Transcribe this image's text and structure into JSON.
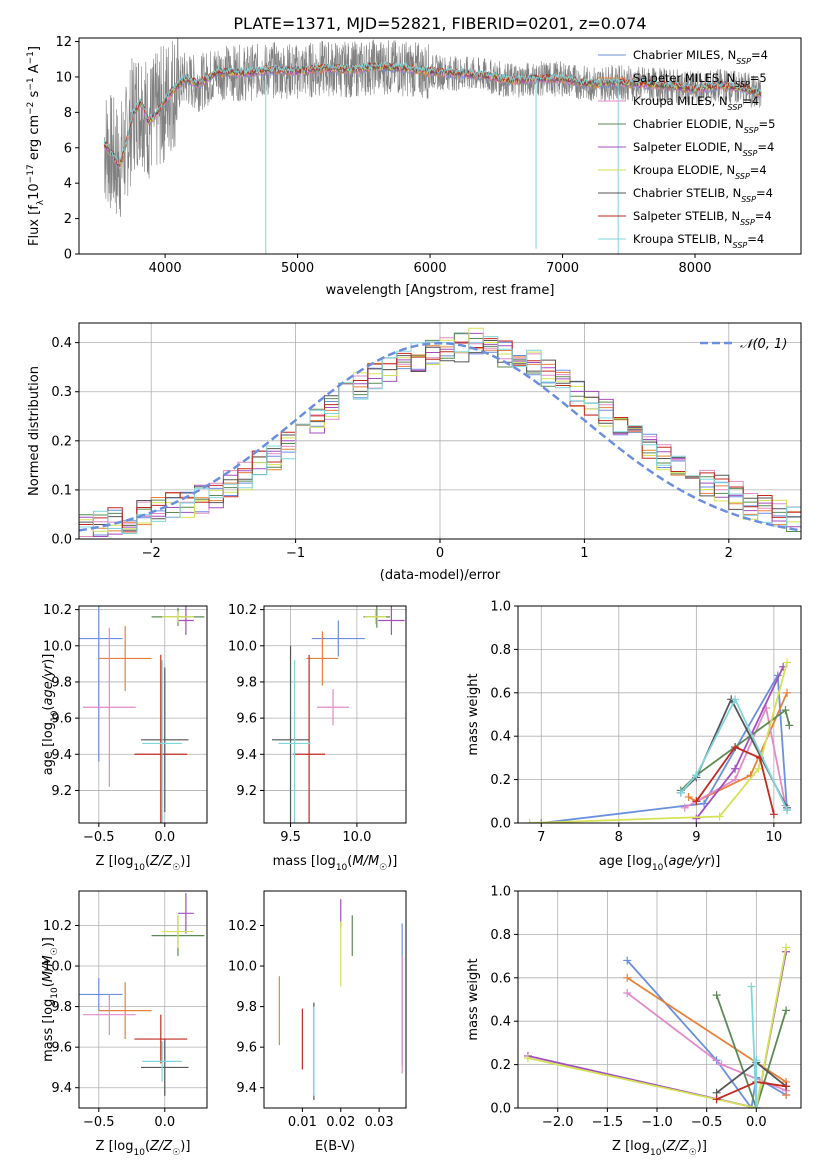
{
  "title": "PLATE=1371, MJD=52821, FIBERID=0201, z=0.074",
  "colors": {
    "Chabrier MILES": "#6b8fdf",
    "Salpeter MILES": "#e8813a",
    "Kroupa MILES": "#e38ac8",
    "Chabrier ELODIE": "#5c8a55",
    "Salpeter ELODIE": "#a34fc0",
    "Kroupa ELODIE": "#d4e256",
    "Chabrier STELIB": "#555555",
    "Salpeter STELIB": "#c22a20",
    "Kroupa STELIB": "#7fd6dc",
    "data": "#808080",
    "normal": "#6b8fdf"
  },
  "chart_data": [
    {
      "type": "line",
      "xlabel": "wavelength [Angstrom, rest frame]",
      "ylabel": "Flux [fλ10⁻¹⁷ erg cm⁻² s⁻¹ A⁻¹]",
      "xlim": [
        3350,
        8800
      ],
      "ylim": [
        0,
        12.2
      ],
      "xticks": [
        4000,
        5000,
        6000,
        7000,
        8000
      ],
      "yticks": [
        0,
        2,
        4,
        6,
        8,
        10,
        12
      ],
      "legend": "upper right",
      "legend_entries": [
        {
          "name": "Chabrier MILES",
          "label": "Chabrier MILES, N",
          "nssp": "4"
        },
        {
          "name": "Salpeter MILES",
          "label": "Salpeter MILES, N",
          "nssp": "5"
        },
        {
          "name": "Kroupa MILES",
          "label": "Kroupa MILES, N",
          "nssp": "4"
        },
        {
          "name": "Chabrier ELODIE",
          "label": "Chabrier ELODIE, N",
          "nssp": "5"
        },
        {
          "name": "Salpeter ELODIE",
          "label": "Salpeter ELODIE, N",
          "nssp": "4"
        },
        {
          "name": "Kroupa ELODIE",
          "label": "Kroupa ELODIE, N",
          "nssp": "4"
        },
        {
          "name": "Chabrier STELIB",
          "label": "Chabrier STELIB, N",
          "nssp": "4"
        },
        {
          "name": "Salpeter STELIB",
          "label": "Salpeter STELIB, N",
          "nssp": "4"
        },
        {
          "name": "Kroupa STELIB",
          "label": "Kroupa STELIB, N",
          "nssp": "4"
        }
      ],
      "nssp_subscript": "SSP",
      "model_curve": {
        "x": [
          3540,
          3600,
          3650,
          3700,
          3760,
          3820,
          3870,
          3920,
          3970,
          4050,
          4150,
          4250,
          4400,
          4600,
          4800,
          5000,
          5200,
          5400,
          5600,
          5800,
          6000,
          6200,
          6400,
          6600,
          6800,
          7000,
          7200,
          7400,
          7600,
          7800,
          8000,
          8200,
          8400,
          8500
        ],
        "y": [
          6.2,
          5.6,
          5.0,
          6.0,
          8.0,
          8.6,
          7.5,
          7.8,
          8.3,
          9.2,
          9.9,
          9.6,
          10.3,
          10.2,
          10.4,
          10.3,
          10.5,
          10.4,
          10.6,
          10.5,
          10.3,
          10.2,
          10.1,
          9.8,
          9.9,
          9.9,
          9.6,
          9.7,
          9.6,
          9.5,
          9.3,
          9.5,
          9.3,
          9.0
        ]
      },
      "data_wavelength_range": [
        3540,
        8500
      ]
    },
    {
      "type": "bar",
      "xlabel": "(data-model)/error",
      "ylabel": "Normed distribution",
      "xlim": [
        -2.5,
        2.5
      ],
      "ylim": [
        0,
        0.44
      ],
      "xticks": [
        -2,
        -1,
        0,
        1,
        2
      ],
      "yticks": [
        0.0,
        0.1,
        0.2,
        0.3,
        0.4
      ],
      "grid": true,
      "legend": "upper right",
      "legend_entries": [
        "𝒩(0, 1)"
      ],
      "bin_edges_start": -2.5,
      "bin_width": 0.1,
      "histogram_envelope": [
        0.02,
        0.03,
        0.035,
        0.04,
        0.05,
        0.06,
        0.065,
        0.07,
        0.08,
        0.09,
        0.11,
        0.13,
        0.15,
        0.17,
        0.19,
        0.21,
        0.24,
        0.27,
        0.29,
        0.31,
        0.33,
        0.35,
        0.36,
        0.37,
        0.38,
        0.39,
        0.39,
        0.4,
        0.39,
        0.38,
        0.37,
        0.36,
        0.34,
        0.32,
        0.3,
        0.28,
        0.26,
        0.24,
        0.21,
        0.19,
        0.17,
        0.15,
        0.13,
        0.11,
        0.1,
        0.09,
        0.07,
        0.06,
        0.05,
        0.04
      ]
    },
    {
      "type": "scatter",
      "xlabel": "Z [log10(Z/Z☉)]",
      "ylabel": "age  [log10(age/yr)]",
      "xlim": [
        -0.65,
        0.32
      ],
      "ylim": [
        9.02,
        10.22
      ],
      "xticks": [
        -0.5,
        0.0
      ],
      "yticks": [
        9.2,
        9.4,
        9.6,
        9.8,
        10.0,
        10.2
      ],
      "grid": true,
      "points": [
        {
          "name": "Chabrier MILES",
          "x": -0.5,
          "y": 10.04,
          "xe": 0.18,
          "ye": 0.68
        },
        {
          "name": "Salpeter MILES",
          "x": -0.3,
          "y": 9.93,
          "xe": 0.2,
          "ye": 0.18
        },
        {
          "name": "Kroupa MILES",
          "x": -0.42,
          "y": 9.66,
          "xe": 0.2,
          "ye": 0.44
        },
        {
          "name": "Chabrier ELODIE",
          "x": 0.1,
          "y": 10.16,
          "xe": 0.2,
          "ye": 0.05
        },
        {
          "name": "Salpeter ELODIE",
          "x": 0.16,
          "y": 10.14,
          "xe": 0.06,
          "ye": 0.08
        },
        {
          "name": "Kroupa ELODIE",
          "x": 0.1,
          "y": 10.16,
          "xe": 0.12,
          "ye": 0.03
        },
        {
          "name": "Chabrier STELIB",
          "x": 0.0,
          "y": 9.48,
          "xe": 0.18,
          "ye": 0.4
        },
        {
          "name": "Salpeter STELIB",
          "x": -0.03,
          "y": 9.4,
          "xe": 0.2,
          "ye": 0.55
        },
        {
          "name": "Kroupa STELIB",
          "x": -0.02,
          "y": 9.46,
          "xe": 0.15,
          "ye": 0.46
        }
      ]
    },
    {
      "type": "scatter",
      "xlabel": "mass [log10(M/M☉)]",
      "ylabel": "",
      "xlim": [
        9.3,
        10.37
      ],
      "ylim": [
        9.02,
        10.22
      ],
      "xticks": [
        9.5,
        10.0
      ],
      "yticks": [
        9.2,
        9.4,
        9.6,
        9.8,
        10.0,
        10.2
      ],
      "grid": true,
      "points": [
        {
          "name": "Chabrier MILES",
          "x": 9.86,
          "y": 10.04,
          "xe": 0.2,
          "ye": 0.1
        },
        {
          "name": "Salpeter MILES",
          "x": 9.74,
          "y": 9.93,
          "xe": 0.12,
          "ye": 0.15
        },
        {
          "name": "Kroupa MILES",
          "x": 9.82,
          "y": 9.66,
          "xe": 0.12,
          "ye": 0.1
        },
        {
          "name": "Chabrier ELODIE",
          "x": 10.15,
          "y": 10.16,
          "xe": 0.1,
          "ye": 0.06
        },
        {
          "name": "Salpeter ELODIE",
          "x": 10.26,
          "y": 10.14,
          "xe": 0.1,
          "ye": 0.08
        },
        {
          "name": "Kroupa ELODIE",
          "x": 10.14,
          "y": 10.16,
          "xe": 0.08,
          "ye": 0.04
        },
        {
          "name": "Chabrier STELIB",
          "x": 9.5,
          "y": 9.48,
          "xe": 0.14,
          "ye": 0.52
        },
        {
          "name": "Salpeter STELIB",
          "x": 9.64,
          "y": 9.4,
          "xe": 0.12,
          "ye": 0.55
        },
        {
          "name": "Kroupa STELIB",
          "x": 9.53,
          "y": 9.46,
          "xe": 0.12,
          "ye": 0.46
        }
      ]
    },
    {
      "type": "line",
      "xlabel": "age  [log10(age/yr)]",
      "ylabel": "mass weight",
      "xlim": [
        6.7,
        10.35
      ],
      "ylim": [
        0,
        1.0
      ],
      "xticks": [
        7,
        8,
        9,
        10
      ],
      "yticks": [
        0.0,
        0.2,
        0.4,
        0.6,
        0.8,
        1.0
      ],
      "grid": true,
      "series": [
        {
          "name": "Chabrier MILES",
          "x": [
            7.0,
            9.1,
            10.05,
            10.17
          ],
          "y": [
            0.0,
            0.09,
            0.68,
            0.06
          ]
        },
        {
          "name": "Salpeter MILES",
          "x": [
            8.9,
            9.0,
            9.7,
            10.17
          ],
          "y": [
            0.12,
            0.1,
            0.22,
            0.6
          ]
        },
        {
          "name": "Kroupa MILES",
          "x": [
            8.85,
            9.5,
            9.9,
            10.15
          ],
          "y": [
            0.07,
            0.2,
            0.53,
            0.08
          ]
        },
        {
          "name": "Chabrier ELODIE",
          "x": [
            8.8,
            9.0,
            10.15,
            10.2
          ],
          "y": [
            0.15,
            0.22,
            0.52,
            0.45
          ]
        },
        {
          "name": "Salpeter ELODIE",
          "x": [
            9.0,
            9.5,
            10.12
          ],
          "y": [
            0.02,
            0.25,
            0.72
          ]
        },
        {
          "name": "Kroupa ELODIE",
          "x": [
            6.85,
            9.3,
            9.8,
            10.17
          ],
          "y": [
            0.0,
            0.03,
            0.25,
            0.74
          ]
        },
        {
          "name": "Chabrier STELIB",
          "x": [
            8.8,
            9.0,
            9.45,
            10.17
          ],
          "y": [
            0.14,
            0.21,
            0.57,
            0.07
          ]
        },
        {
          "name": "Salpeter STELIB",
          "x": [
            9.0,
            9.5,
            9.82,
            10.0
          ],
          "y": [
            0.1,
            0.35,
            0.3,
            0.04
          ]
        },
        {
          "name": "Kroupa STELIB",
          "x": [
            8.8,
            9.0,
            9.5,
            10.17
          ],
          "y": [
            0.14,
            0.22,
            0.57,
            0.06
          ]
        }
      ]
    },
    {
      "type": "scatter",
      "xlabel": "Z [log10(Z/Z☉)]",
      "ylabel": "mass [log10(M/M☉)]",
      "xlim": [
        -0.65,
        0.32
      ],
      "ylim": [
        9.3,
        10.37
      ],
      "xticks": [
        -0.5,
        0.0
      ],
      "yticks": [
        9.4,
        9.6,
        9.8,
        10.0,
        10.2
      ],
      "grid": true,
      "points": [
        {
          "name": "Chabrier MILES",
          "x": -0.5,
          "y": 9.86,
          "xe": 0.18,
          "ye": 0.08
        },
        {
          "name": "Salpeter MILES",
          "x": -0.3,
          "y": 9.78,
          "xe": 0.2,
          "ye": 0.14
        },
        {
          "name": "Kroupa MILES",
          "x": -0.42,
          "y": 9.76,
          "xe": 0.2,
          "ye": 0.1
        },
        {
          "name": "Chabrier ELODIE",
          "x": 0.1,
          "y": 10.15,
          "xe": 0.2,
          "ye": 0.1
        },
        {
          "name": "Salpeter ELODIE",
          "x": 0.16,
          "y": 10.26,
          "xe": 0.06,
          "ye": 0.1
        },
        {
          "name": "Kroupa ELODIE",
          "x": 0.1,
          "y": 10.17,
          "xe": 0.12,
          "ye": 0.08
        },
        {
          "name": "Chabrier STELIB",
          "x": 0.0,
          "y": 9.5,
          "xe": 0.18,
          "ye": 0.14
        },
        {
          "name": "Salpeter STELIB",
          "x": -0.03,
          "y": 9.64,
          "xe": 0.2,
          "ye": 0.12
        },
        {
          "name": "Kroupa STELIB",
          "x": -0.02,
          "y": 9.53,
          "xe": 0.15,
          "ye": 0.1
        }
      ]
    },
    {
      "type": "scatter",
      "xlabel": "E(B-V)",
      "ylabel": "",
      "xlim": [
        0.0,
        0.037
      ],
      "ylim": [
        9.3,
        10.37
      ],
      "xticks": [
        0.01,
        0.02,
        0.03
      ],
      "yticks": [
        9.4,
        9.6,
        9.8,
        10.0,
        10.2
      ],
      "grid": false,
      "points": [
        {
          "name": "Chabrier MILES",
          "x": 0.036,
          "y": 9.86,
          "xe": 0.0,
          "ye": 0.35
        },
        {
          "name": "Salpeter MILES",
          "x": 0.004,
          "y": 9.78,
          "xe": 0.0,
          "ye": 0.17
        },
        {
          "name": "Kroupa MILES",
          "x": 0.036,
          "y": 9.76,
          "xe": 0.0,
          "ye": 0.29
        },
        {
          "name": "Chabrier ELODIE",
          "x": 0.023,
          "y": 10.15,
          "xe": 0.0,
          "ye": 0.1
        },
        {
          "name": "Salpeter ELODIE",
          "x": 0.02,
          "y": 10.26,
          "xe": 0.0,
          "ye": 0.07
        },
        {
          "name": "Kroupa ELODIE",
          "x": 0.02,
          "y": 10.06,
          "xe": 0.0,
          "ye": 0.16
        },
        {
          "name": "Chabrier STELIB",
          "x": 0.013,
          "y": 9.58,
          "xe": 0.0,
          "ye": 0.24
        },
        {
          "name": "Salpeter STELIB",
          "x": 0.01,
          "y": 9.64,
          "xe": 0.0,
          "ye": 0.15
        },
        {
          "name": "Kroupa STELIB",
          "x": 0.013,
          "y": 9.58,
          "xe": 0.0,
          "ye": 0.22
        }
      ]
    },
    {
      "type": "line",
      "xlabel": "Z [log10(Z/Z☉)]",
      "ylabel": "mass weight",
      "xlim": [
        -2.4,
        0.45
      ],
      "ylim": [
        0,
        1.0
      ],
      "xticks": [
        -2.0,
        -1.5,
        -1.0,
        -0.5,
        0.0
      ],
      "yticks": [
        0.0,
        0.2,
        0.4,
        0.6,
        0.8,
        1.0
      ],
      "grid": true,
      "series": [
        {
          "name": "Chabrier MILES",
          "x": [
            -1.3,
            -0.4,
            -0.05,
            0.0,
            0.3
          ],
          "y": [
            0.68,
            0.22,
            0.0,
            0.14,
            0.06
          ]
        },
        {
          "name": "Salpeter MILES",
          "x": [
            -1.3,
            0.3,
            0.3
          ],
          "y": [
            0.6,
            0.12,
            0.06
          ]
        },
        {
          "name": "Kroupa MILES",
          "x": [
            -1.3,
            -0.35,
            0.3
          ],
          "y": [
            0.53,
            0.2,
            0.08
          ]
        },
        {
          "name": "Chabrier ELODIE",
          "x": [
            -0.4,
            0.0,
            0.3,
            0.0
          ],
          "y": [
            0.52,
            0.0,
            0.45,
            0.0
          ]
        },
        {
          "name": "Salpeter ELODIE",
          "x": [
            -2.3,
            0.0,
            0.3
          ],
          "y": [
            0.24,
            0.0,
            0.72
          ]
        },
        {
          "name": "Kroupa ELODIE",
          "x": [
            -2.3,
            0.0,
            0.3
          ],
          "y": [
            0.23,
            0.0,
            0.74
          ]
        },
        {
          "name": "Chabrier STELIB",
          "x": [
            -0.4,
            0.0,
            0.3
          ],
          "y": [
            0.07,
            0.21,
            0.1
          ]
        },
        {
          "name": "Salpeter STELIB",
          "x": [
            -0.4,
            0.0,
            0.3
          ],
          "y": [
            0.04,
            0.12,
            0.1
          ]
        },
        {
          "name": "Kroupa STELIB",
          "x": [
            -0.05,
            0.0,
            0.0
          ],
          "y": [
            0.56,
            0.0,
            0.22
          ]
        }
      ]
    }
  ]
}
